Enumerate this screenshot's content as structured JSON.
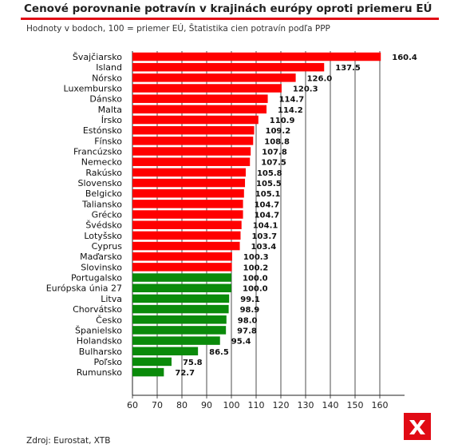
{
  "title": "Cenové porovnanie potravín v krajinách európy oproti priemeru EÚ",
  "subtitle": "Hodnoty v bodoch, 100 = priemer EÚ, Štatistika cien potravín podľa PPP",
  "source": "Zdroj: Eurostat, XTB",
  "logo": "xtb-logo",
  "colors": {
    "above_average": "#ff0000",
    "at_or_below_average": "#0a8a0a",
    "title_rule": "#e10a14",
    "logo_bg": "#e10a14"
  },
  "chart_data": {
    "type": "bar",
    "orientation": "horizontal",
    "categories": [
      "Švajčiarsko",
      "Island",
      "Nórsko",
      "Luxembursko",
      "Dánsko",
      "Malta",
      "Írsko",
      "Estónsko",
      "Fínsko",
      "Francúzsko",
      "Nemecko",
      "Rakúsko",
      "Slovensko",
      "Belgicko",
      "Taliansko",
      "Grécko",
      "Švédsko",
      "Lotyšsko",
      "Cyprus",
      "Maďarsko",
      "Slovinsko",
      "Portugalsko",
      "Európska únia 27",
      "Litva",
      "Chorvátsko",
      "Česko",
      "Španielsko",
      "Holandsko",
      "Bulharsko",
      "Poľsko",
      "Rumunsko"
    ],
    "values": [
      160.4,
      137.5,
      126.0,
      120.3,
      114.7,
      114.2,
      110.9,
      109.2,
      108.8,
      107.8,
      107.5,
      105.8,
      105.5,
      105.1,
      104.7,
      104.7,
      104.1,
      103.7,
      103.4,
      100.3,
      100.2,
      100.0,
      100.0,
      99.1,
      98.9,
      98.0,
      97.8,
      95.4,
      86.5,
      75.8,
      72.7
    ],
    "labels": [
      "160.4",
      "137.5",
      "126.0",
      "120.3",
      "114.7",
      "114.2",
      "110.9",
      "109.2",
      "108.8",
      "107.8",
      "107.5",
      "105.8",
      "105.5",
      "105.1",
      "104.7",
      "104.7",
      "104.1",
      "103.7",
      "103.4",
      "100.3",
      "100.2",
      "100.0",
      "100.0",
      "99.1",
      "98.9",
      "98.0",
      "97.8",
      "95.4",
      "86.5",
      "75.8",
      "72.7"
    ],
    "xlim": [
      60,
      170
    ],
    "xticks": [
      "60",
      "70",
      "80",
      "90",
      "100",
      "110",
      "120",
      "130",
      "140",
      "150",
      "160"
    ],
    "grid": "vertical",
    "legend": "none"
  }
}
